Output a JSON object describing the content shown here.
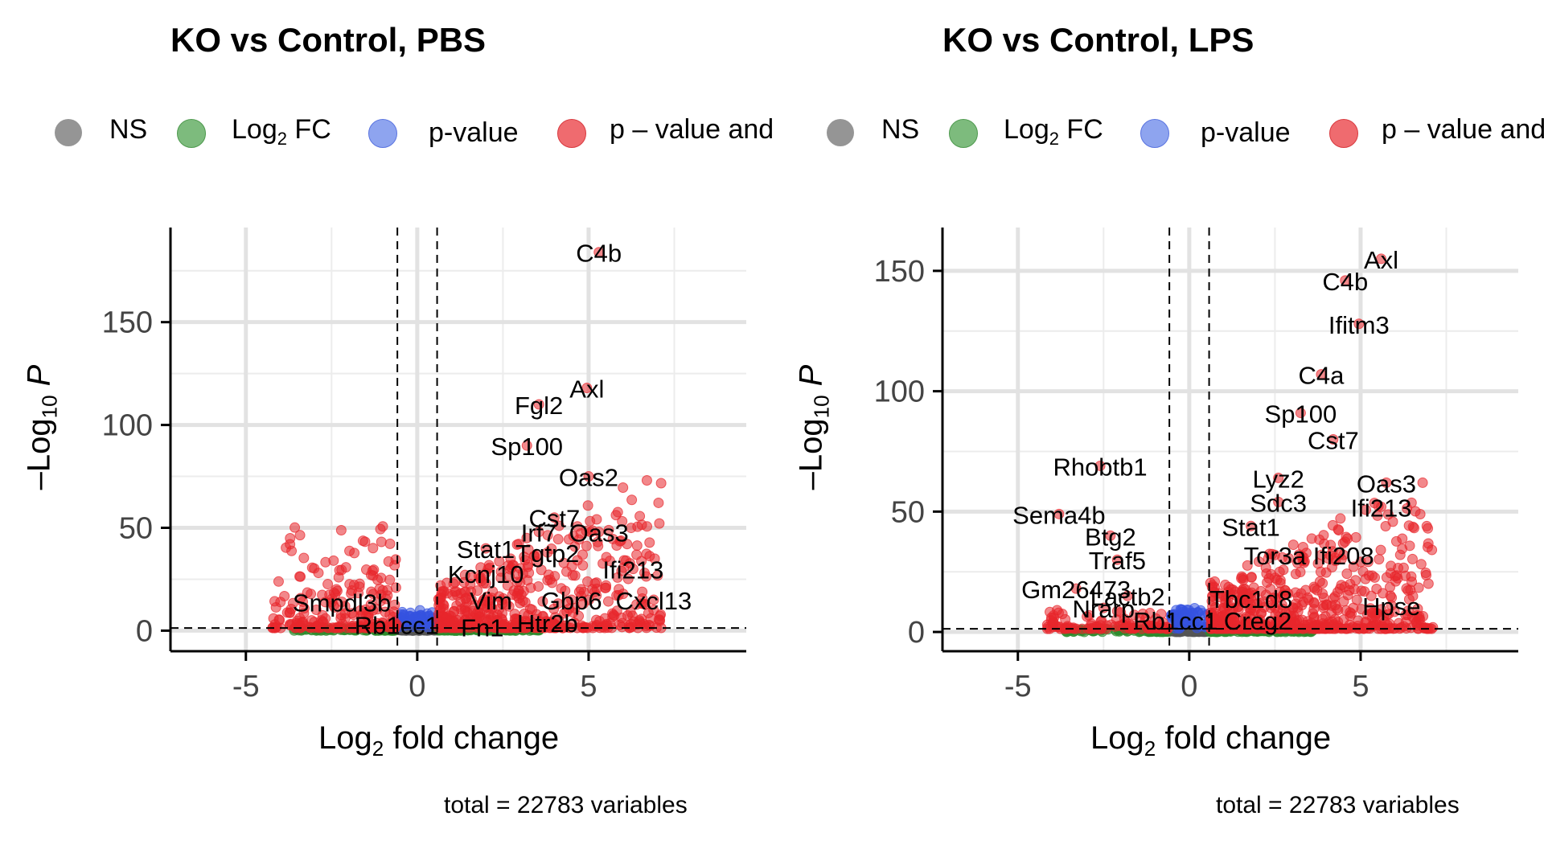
{
  "legend": {
    "ns": {
      "label": "NS",
      "color": "#6e6e6e"
    },
    "log2fc": {
      "label_main": "Log",
      "label_sub": "2",
      "label_tail": " FC",
      "color": "#3a9a3a"
    },
    "pvalue": {
      "label": "p-value",
      "color": "#4a6ae8"
    },
    "both": {
      "label": "p – value and log",
      "color": "#e8262c"
    }
  },
  "axis_text": {
    "xlabel_main": "Log",
    "xlabel_sub": "2",
    "xlabel_tail": " fold change",
    "ylabel_pre": "–Log",
    "ylabel_sub": "10",
    "ylabel_var": "P"
  },
  "chart_data": [
    {
      "type": "scatter",
      "title": "KO vs Control, PBS",
      "caption": "total = 22783 variables",
      "xlim": [
        -7.2,
        9.6
      ],
      "ylim": [
        -10,
        196
      ],
      "x_ticks": [
        -5,
        0,
        5
      ],
      "y_ticks": [
        0,
        50,
        100,
        150
      ],
      "fc_cutoff": [
        -0.58,
        0.58
      ],
      "p_cutoff_y": 1.3,
      "grid": true,
      "legend_position": "top",
      "labeled_points": [
        {
          "label": "C4b",
          "x": 5.3,
          "y": 184
        },
        {
          "label": "Axl",
          "x": 4.95,
          "y": 118
        },
        {
          "label": "Fgl2",
          "x": 3.55,
          "y": 110
        },
        {
          "label": "Sp100",
          "x": 3.2,
          "y": 90
        },
        {
          "label": "Oas2",
          "x": 5.0,
          "y": 75
        },
        {
          "label": "Cst7",
          "x": 4.0,
          "y": 55
        },
        {
          "label": "Irf7",
          "x": 3.55,
          "y": 48
        },
        {
          "label": "Oas3",
          "x": 5.3,
          "y": 48
        },
        {
          "label": "Stat1",
          "x": 2.0,
          "y": 40
        },
        {
          "label": "Tgtp2",
          "x": 3.8,
          "y": 38
        },
        {
          "label": "Ifi213",
          "x": 6.3,
          "y": 30
        },
        {
          "label": "Kcnj10",
          "x": 2.0,
          "y": 28
        },
        {
          "label": "Smpdl3b",
          "x": -2.2,
          "y": 14
        },
        {
          "label": "Vim",
          "x": 2.15,
          "y": 15
        },
        {
          "label": "Gbp6",
          "x": 4.5,
          "y": 15
        },
        {
          "label": "Cxcl13",
          "x": 6.9,
          "y": 15
        },
        {
          "label": "Rb1cc1",
          "x": -0.6,
          "y": 3
        },
        {
          "label": "Fn1",
          "x": 1.9,
          "y": 2
        },
        {
          "label": "Htr2b",
          "x": 3.8,
          "y": 4
        }
      ]
    },
    {
      "type": "scatter",
      "title": "KO vs Control, LPS",
      "caption": "total = 22783 variables",
      "xlim": [
        -7.2,
        9.6
      ],
      "ylim": [
        -8,
        168
      ],
      "x_ticks": [
        -5,
        0,
        5
      ],
      "y_ticks": [
        0,
        50,
        100,
        150
      ],
      "fc_cutoff": [
        -0.58,
        0.58
      ],
      "p_cutoff_y": 1.3,
      "grid": true,
      "legend_position": "top",
      "labeled_points": [
        {
          "label": "Axl",
          "x": 5.6,
          "y": 155
        },
        {
          "label": "C4b",
          "x": 4.55,
          "y": 146
        },
        {
          "label": "Ifitm3",
          "x": 4.95,
          "y": 128
        },
        {
          "label": "C4a",
          "x": 3.85,
          "y": 107
        },
        {
          "label": "Sp100",
          "x": 3.25,
          "y": 91
        },
        {
          "label": "Cst7",
          "x": 4.2,
          "y": 80
        },
        {
          "label": "Rhobtb1",
          "x": -2.6,
          "y": 69
        },
        {
          "label": "Lyz2",
          "x": 2.6,
          "y": 64
        },
        {
          "label": "Oas3",
          "x": 5.75,
          "y": 62
        },
        {
          "label": "Sdc3",
          "x": 2.6,
          "y": 54
        },
        {
          "label": "Ifi213",
          "x": 5.6,
          "y": 52
        },
        {
          "label": "Sema4b",
          "x": -3.8,
          "y": 49
        },
        {
          "label": "Stat1",
          "x": 1.8,
          "y": 44
        },
        {
          "label": "Btg2",
          "x": -2.3,
          "y": 40
        },
        {
          "label": "Tor3a",
          "x": 2.5,
          "y": 32
        },
        {
          "label": "Ifi208",
          "x": 4.5,
          "y": 32
        },
        {
          "label": "Traf5",
          "x": -2.1,
          "y": 30
        },
        {
          "label": "Gm26473",
          "x": -3.3,
          "y": 18
        },
        {
          "label": "Lactb2",
          "x": -1.8,
          "y": 15
        },
        {
          "label": "Tbc1d8",
          "x": 1.8,
          "y": 14
        },
        {
          "label": "Hpse",
          "x": 5.9,
          "y": 11
        },
        {
          "label": "Nrarp",
          "x": -2.5,
          "y": 10
        },
        {
          "label": "Rb1cc1",
          "x": -0.4,
          "y": 5
        },
        {
          "label": "Creg2",
          "x": 2.0,
          "y": 5
        }
      ]
    }
  ]
}
